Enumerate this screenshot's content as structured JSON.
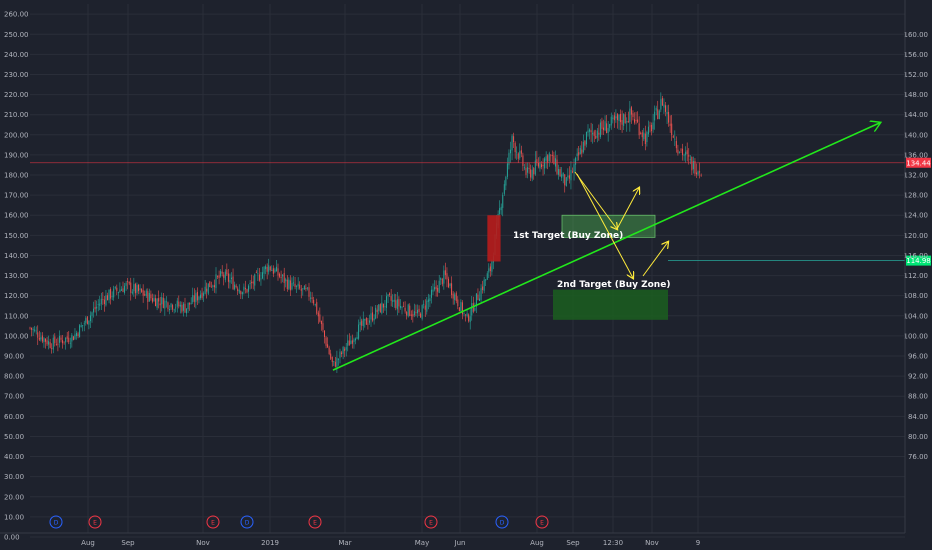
{
  "chart_data": {
    "type": "candlestick",
    "grid": true,
    "theme": {
      "background": "#1e222d",
      "grid": "#2a2e39",
      "up": "#26a69a",
      "down": "#ef5350",
      "text": "#b2b5be"
    },
    "left_axis": {
      "ticks": [
        "260.00",
        "250.00",
        "240.00",
        "230.00",
        "220.00",
        "210.00",
        "200.00",
        "190.00",
        "180.00",
        "170.00",
        "160.00",
        "150.00",
        "140.00",
        "130.00",
        "120.00",
        "110.00",
        "100.00",
        "90.00",
        "80.00",
        "70.00",
        "60.00",
        "50.00",
        "40.00",
        "30.00",
        "20.00",
        "10.00",
        "0.00"
      ],
      "range": [
        0,
        260
      ]
    },
    "right_axis": {
      "ticks": [
        "160.00",
        "156.00",
        "152.00",
        "148.00",
        "144.00",
        "140.00",
        "136.00",
        "132.00",
        "128.00",
        "124.00",
        "120.00",
        "116.00",
        "112.00",
        "108.00",
        "104.00",
        "100.00",
        "96.00",
        "92.00",
        "88.00",
        "84.00",
        "80.00",
        "76.00"
      ],
      "range": [
        74,
        161
      ]
    },
    "x_axis": {
      "labels": [
        "Aug",
        "Sep",
        "Nov",
        "2019",
        "Mar",
        "May",
        "Jun",
        "Aug",
        "Sep",
        "12:30",
        "Nov",
        "9"
      ],
      "dates": [
        "2018-08",
        "2018-09",
        "2018-11",
        "2019-01",
        "2019-03",
        "2019-05",
        "2019-06",
        "2019-08",
        "2019-09",
        "12:30",
        "2019-11",
        "9"
      ]
    },
    "price_path": [
      [
        "2018-06-01",
        104
      ],
      [
        "2018-06-15",
        96
      ],
      [
        "2018-07-01",
        100
      ],
      [
        "2018-07-20",
        118
      ],
      [
        "2018-08-05",
        125
      ],
      [
        "2018-08-25",
        118
      ],
      [
        "2018-09-15",
        114
      ],
      [
        "2018-09-30",
        125
      ],
      [
        "2018-10-10",
        130
      ],
      [
        "2018-10-25",
        122
      ],
      [
        "2018-11-10",
        135
      ],
      [
        "2018-11-25",
        125
      ],
      [
        "2018-12-10",
        120
      ],
      [
        "2018-12-24",
        85
      ],
      [
        "2019-01-10",
        103
      ],
      [
        "2019-01-31",
        118
      ],
      [
        "2019-02-20",
        110
      ],
      [
        "2019-03-10",
        130
      ],
      [
        "2019-03-25",
        108
      ],
      [
        "2019-04-10",
        133
      ],
      [
        "2019-04-18",
        170
      ],
      [
        "2019-04-25",
        198
      ],
      [
        "2019-05-05",
        180
      ],
      [
        "2019-05-20",
        190
      ],
      [
        "2019-06-01",
        175
      ],
      [
        "2019-06-15",
        200
      ],
      [
        "2019-07-01",
        205
      ],
      [
        "2019-07-15",
        210
      ],
      [
        "2019-07-25",
        198
      ],
      [
        "2019-08-05",
        217
      ],
      [
        "2019-08-15",
        195
      ],
      [
        "2019-08-25",
        185
      ],
      [
        "2019-09-01",
        183
      ]
    ],
    "current_price": {
      "label": "134.44",
      "value": 134.44,
      "color": "#f23645"
    },
    "support_level": {
      "label": "114.98",
      "value": 114.98,
      "color": "#26a69a"
    },
    "trendline": {
      "from": [
        "2018-12-24",
        83
      ],
      "to": [
        "2019-12-31",
        206
      ],
      "color": "#22e81c"
    },
    "red_box": {
      "from": [
        "2019-04-08",
        160
      ],
      "to": [
        "2019-04-17",
        137
      ],
      "color": "#b71c1c"
    },
    "zones": [
      {
        "label": "1st Target (Buy Zone)",
        "y_high": 160,
        "y_low": 149,
        "color": "#4caf50"
      },
      {
        "label": "2nd Target (Buy Zone)",
        "y_high": 123,
        "y_low": 108,
        "color": "#1b5e20"
      }
    ],
    "events": [
      {
        "glyph": "D",
        "color": "#2962ff"
      },
      {
        "glyph": "E",
        "color": "#f23645"
      },
      {
        "glyph": "E",
        "color": "#f23645"
      },
      {
        "glyph": "D",
        "color": "#2962ff"
      },
      {
        "glyph": "E",
        "color": "#f23645"
      },
      {
        "glyph": "E",
        "color": "#f23645"
      },
      {
        "glyph": "D",
        "color": "#2962ff"
      },
      {
        "glyph": "E",
        "color": "#f23645"
      }
    ],
    "arrow_color": "#ffeb3b"
  }
}
